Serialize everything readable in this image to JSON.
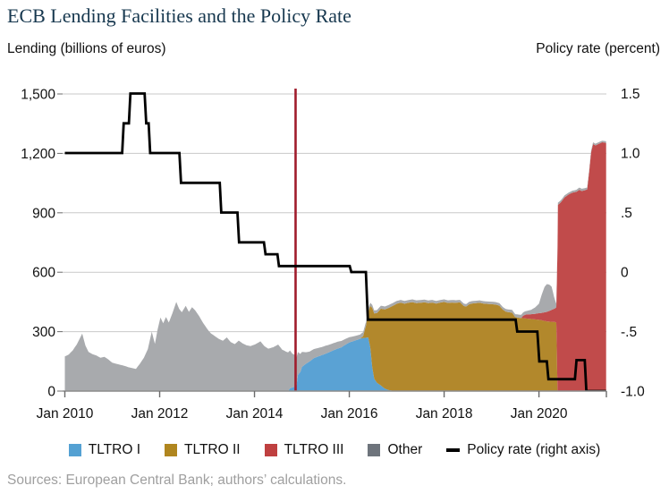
{
  "title": "ECB Lending Facilities and the Policy Rate",
  "left_axis_unit": "Lending (billions of euros)",
  "right_axis_unit": "Policy rate (percent)",
  "source_note": "Sources: European Central Bank; authors’ calculations.",
  "colors": {
    "background": "#ffffff",
    "title": "#17384f",
    "gridline": "#c9c9c9",
    "axis_line": "#8c8c8c",
    "tick": "#6b6b6b",
    "policy_line": "#000000",
    "event_line": "#a01c2c",
    "source_text": "#9f9f9f"
  },
  "legend": [
    {
      "label": "TLTRO I",
      "type": "swatch",
      "color": "#54a1d3"
    },
    {
      "label": "TLTRO II",
      "type": "swatch",
      "color": "#b0861f"
    },
    {
      "label": "TLTRO III",
      "type": "swatch",
      "color": "#bf4040"
    },
    {
      "label": "Other",
      "type": "swatch",
      "color": "#6e747c"
    },
    {
      "label": "Policy rate (right axis)",
      "type": "line",
      "color": "#000000"
    }
  ],
  "chart_data": {
    "type": "area",
    "stacked": true,
    "title": "ECB Lending Facilities and the Policy Rate",
    "x_unit": "months since Jan 2010",
    "x_range_months": [
      0,
      137
    ],
    "x_ticks": [
      {
        "m": 0,
        "label": "Jan 2010"
      },
      {
        "m": 24,
        "label": "Jan 2012"
      },
      {
        "m": 48,
        "label": "Jan 2014"
      },
      {
        "m": 72,
        "label": "Jan 2016"
      },
      {
        "m": 96,
        "label": "Jan 2018"
      },
      {
        "m": 120,
        "label": "Jan 2020"
      }
    ],
    "left_axis": {
      "label": "Lending (billions of euros)",
      "range": [
        0,
        1500
      ],
      "tick_values": [
        0,
        300,
        600,
        900,
        1200,
        1500
      ],
      "tick_labels": [
        "0",
        "300",
        "600",
        "900",
        "1,200",
        "1,500"
      ]
    },
    "right_axis": {
      "label": "Policy rate (percent)",
      "range": [
        -1.0,
        1.5
      ],
      "tick_values": [
        -1.0,
        -0.5,
        0,
        0.5,
        1.0,
        1.5
      ],
      "tick_labels": [
        "-1.0",
        "-.5",
        "0",
        ".5",
        "1.0",
        "1.5"
      ]
    },
    "grid": true,
    "legend_position": "bottom",
    "event_line": {
      "x_month": 58.4,
      "color": "#a01c2c",
      "note": "vertical marker, late 2014"
    },
    "series": [
      {
        "name": "TLTRO I",
        "color": "#5aa2d4",
        "points": [
          [
            0,
            0
          ],
          [
            56.5,
            0
          ],
          [
            57,
            14
          ],
          [
            57.8,
            20
          ],
          [
            58.6,
            24
          ],
          [
            59,
            82
          ],
          [
            59.6,
            96
          ],
          [
            60,
            122
          ],
          [
            61,
            138
          ],
          [
            62,
            150
          ],
          [
            63,
            166
          ],
          [
            64,
            174
          ],
          [
            65,
            181
          ],
          [
            66,
            189
          ],
          [
            67,
            197
          ],
          [
            68,
            206
          ],
          [
            69,
            214
          ],
          [
            70,
            221
          ],
          [
            71,
            234
          ],
          [
            72,
            246
          ],
          [
            73,
            252
          ],
          [
            74,
            259
          ],
          [
            75,
            266
          ],
          [
            76,
            269
          ],
          [
            76.8,
            271
          ],
          [
            77.3,
            220
          ],
          [
            77.8,
            120
          ],
          [
            78.3,
            62
          ],
          [
            79,
            42
          ],
          [
            80,
            28
          ],
          [
            81,
            12
          ],
          [
            82,
            5
          ],
          [
            83,
            2
          ],
          [
            84,
            0
          ],
          [
            137,
            0
          ]
        ]
      },
      {
        "name": "TLTRO II",
        "color": "#b2882c",
        "points": [
          [
            0,
            0
          ],
          [
            74.8,
            0
          ],
          [
            75.5,
            10
          ],
          [
            76.2,
            60
          ],
          [
            76.8,
            130
          ],
          [
            77.3,
            210
          ],
          [
            77.8,
            300
          ],
          [
            78.3,
            330
          ],
          [
            79,
            352
          ],
          [
            80,
            388
          ],
          [
            81,
            400
          ],
          [
            82,
            415
          ],
          [
            83,
            428
          ],
          [
            84,
            441
          ],
          [
            85,
            446
          ],
          [
            86,
            441
          ],
          [
            87,
            446
          ],
          [
            88,
            449
          ],
          [
            89,
            444
          ],
          [
            90,
            446
          ],
          [
            91,
            448
          ],
          [
            92,
            444
          ],
          [
            93,
            447
          ],
          [
            94,
            442
          ],
          [
            95,
            447
          ],
          [
            96,
            450
          ],
          [
            97,
            445
          ],
          [
            98,
            447
          ],
          [
            99,
            446
          ],
          [
            100,
            448
          ],
          [
            101,
            429
          ],
          [
            101.6,
            427
          ],
          [
            102.3,
            438
          ],
          [
            103,
            442
          ],
          [
            104,
            444
          ],
          [
            105,
            446
          ],
          [
            106,
            442
          ],
          [
            107,
            440
          ],
          [
            108,
            439
          ],
          [
            109,
            437
          ],
          [
            110,
            431
          ],
          [
            110.8,
            412
          ],
          [
            111.6,
            401
          ],
          [
            112.4,
            398
          ],
          [
            113.2,
            396
          ],
          [
            114,
            373
          ],
          [
            115,
            370
          ],
          [
            116,
            368
          ],
          [
            117,
            366
          ],
          [
            118,
            364
          ],
          [
            119,
            362
          ],
          [
            120,
            360
          ],
          [
            121,
            356
          ],
          [
            122,
            352
          ],
          [
            123,
            350
          ],
          [
            124,
            349
          ],
          [
            124.4,
            345
          ],
          [
            124.7,
            0
          ],
          [
            137,
            0
          ]
        ]
      },
      {
        "name": "TLTRO III",
        "color": "#c14b4b",
        "points": [
          [
            0,
            0
          ],
          [
            115.5,
            0
          ],
          [
            116,
            12
          ],
          [
            116.5,
            18
          ],
          [
            117,
            21
          ],
          [
            118,
            24
          ],
          [
            119,
            28
          ],
          [
            120,
            33
          ],
          [
            121,
            40
          ],
          [
            122,
            48
          ],
          [
            123,
            58
          ],
          [
            124,
            68
          ],
          [
            124.4,
            78
          ],
          [
            124.8,
            940
          ],
          [
            125.5,
            952
          ],
          [
            126.5,
            978
          ],
          [
            127.5,
            992
          ],
          [
            128.5,
            1002
          ],
          [
            129.5,
            1006
          ],
          [
            130.2,
            1016
          ],
          [
            130.8,
            1010
          ],
          [
            131.5,
            1013
          ],
          [
            132.2,
            1018
          ],
          [
            132.7,
            1105
          ],
          [
            133.2,
            1205
          ],
          [
            133.7,
            1247
          ],
          [
            134.3,
            1240
          ],
          [
            135,
            1247
          ],
          [
            136,
            1256
          ],
          [
            137,
            1253
          ]
        ]
      },
      {
        "name": "Other",
        "color": "#a8aaad",
        "points": [
          [
            0,
            175
          ],
          [
            1,
            185
          ],
          [
            2,
            205
          ],
          [
            3,
            235
          ],
          [
            4.4,
            290
          ],
          [
            5.2,
            230
          ],
          [
            6,
            198
          ],
          [
            7,
            186
          ],
          [
            8,
            180
          ],
          [
            9,
            168
          ],
          [
            10,
            173
          ],
          [
            11,
            160
          ],
          [
            12,
            143
          ],
          [
            13,
            138
          ],
          [
            14,
            133
          ],
          [
            15,
            128
          ],
          [
            16,
            121
          ],
          [
            17,
            116
          ],
          [
            18,
            112
          ],
          [
            19,
            138
          ],
          [
            20,
            168
          ],
          [
            21,
            212
          ],
          [
            22,
            300
          ],
          [
            22.8,
            238
          ],
          [
            23.5,
            312
          ],
          [
            24.2,
            372
          ],
          [
            24.9,
            342
          ],
          [
            25.6,
            374
          ],
          [
            26.3,
            346
          ],
          [
            27.2,
            392
          ],
          [
            28.2,
            450
          ],
          [
            28.9,
            416
          ],
          [
            29.6,
            398
          ],
          [
            30.6,
            430
          ],
          [
            31.4,
            400
          ],
          [
            32.2,
            424
          ],
          [
            33,
            407
          ],
          [
            34,
            378
          ],
          [
            35,
            344
          ],
          [
            36.3,
            307
          ],
          [
            37,
            291
          ],
          [
            38,
            277
          ],
          [
            39,
            263
          ],
          [
            40,
            254
          ],
          [
            41,
            271
          ],
          [
            42,
            247
          ],
          [
            43,
            237
          ],
          [
            44,
            255
          ],
          [
            45,
            241
          ],
          [
            46,
            231
          ],
          [
            47,
            227
          ],
          [
            48.3,
            237
          ],
          [
            49.5,
            251
          ],
          [
            50.5,
            227
          ],
          [
            51.5,
            214
          ],
          [
            52.7,
            221
          ],
          [
            54,
            235
          ],
          [
            55,
            209
          ],
          [
            56,
            199
          ],
          [
            57,
            191
          ],
          [
            57.6,
            170
          ],
          [
            58.4,
            158
          ],
          [
            59,
            115
          ],
          [
            60,
            76
          ],
          [
            61,
            58
          ],
          [
            62,
            50
          ],
          [
            63,
            46
          ],
          [
            64,
            43
          ],
          [
            65,
            41
          ],
          [
            66,
            40
          ],
          [
            67,
            38
          ],
          [
            68,
            36
          ],
          [
            69,
            35
          ],
          [
            70,
            32
          ],
          [
            71,
            29
          ],
          [
            72,
            26
          ],
          [
            73,
            24
          ],
          [
            74,
            22
          ],
          [
            75,
            21
          ],
          [
            76,
            19
          ],
          [
            77,
            17
          ],
          [
            78,
            15
          ],
          [
            82,
            15
          ],
          [
            86,
            14
          ],
          [
            90,
            14
          ],
          [
            94,
            13
          ],
          [
            98,
            13
          ],
          [
            102,
            12
          ],
          [
            106,
            12
          ],
          [
            110,
            13
          ],
          [
            113,
            14
          ],
          [
            115,
            16
          ],
          [
            117,
            18
          ],
          [
            118,
            22
          ],
          [
            119,
            32
          ],
          [
            120,
            48
          ],
          [
            120.7,
            92
          ],
          [
            121.4,
            128
          ],
          [
            122,
            140
          ],
          [
            122.6,
            133
          ],
          [
            123.2,
            118
          ],
          [
            123.8,
            62
          ],
          [
            124.3,
            24
          ],
          [
            124.6,
            12
          ],
          [
            126,
            10
          ],
          [
            129,
            10
          ],
          [
            130.5,
            12
          ],
          [
            132,
            10
          ],
          [
            134,
            9
          ],
          [
            137,
            8
          ]
        ]
      }
    ],
    "line_series": {
      "name": "Policy rate (right axis)",
      "axis": "right",
      "color": "#000000",
      "points": [
        [
          0,
          1.0
        ],
        [
          14.5,
          1.0
        ],
        [
          14.9,
          1.25
        ],
        [
          16.2,
          1.25
        ],
        [
          16.6,
          1.5
        ],
        [
          20.2,
          1.5
        ],
        [
          20.6,
          1.25
        ],
        [
          21.2,
          1.25
        ],
        [
          21.6,
          1.0
        ],
        [
          29,
          1.0
        ],
        [
          29.4,
          0.75
        ],
        [
          39.2,
          0.75
        ],
        [
          39.6,
          0.5
        ],
        [
          43.7,
          0.5
        ],
        [
          44.1,
          0.25
        ],
        [
          50.4,
          0.25
        ],
        [
          50.8,
          0.15
        ],
        [
          53.8,
          0.15
        ],
        [
          54.2,
          0.05
        ],
        [
          72.1,
          0.05
        ],
        [
          72.5,
          0.0
        ],
        [
          76.2,
          0.0
        ],
        [
          76.7,
          -0.4
        ],
        [
          114.1,
          -0.4
        ],
        [
          114.5,
          -0.5
        ],
        [
          119.6,
          -0.5
        ],
        [
          120.1,
          -0.75
        ],
        [
          122,
          -0.75
        ],
        [
          122.4,
          -0.9
        ],
        [
          129.1,
          -0.9
        ],
        [
          129.5,
          -0.74
        ],
        [
          131.6,
          -0.74
        ],
        [
          132,
          -1.0
        ],
        [
          137,
          -1.0
        ]
      ]
    }
  }
}
